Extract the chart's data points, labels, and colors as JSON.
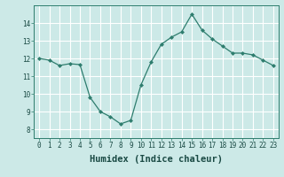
{
  "x": [
    0,
    1,
    2,
    3,
    4,
    5,
    6,
    7,
    8,
    9,
    10,
    11,
    12,
    13,
    14,
    15,
    16,
    17,
    18,
    19,
    20,
    21,
    22,
    23
  ],
  "y": [
    12.0,
    11.9,
    11.6,
    11.7,
    11.65,
    9.8,
    9.0,
    8.7,
    8.3,
    8.5,
    10.5,
    11.8,
    12.8,
    13.2,
    13.5,
    14.5,
    13.6,
    13.1,
    12.7,
    12.3,
    12.3,
    12.2,
    11.9,
    11.6
  ],
  "xlabel": "Humidex (Indice chaleur)",
  "xlim": [
    -0.5,
    23.5
  ],
  "ylim": [
    7.5,
    15.0
  ],
  "yticks": [
    8,
    9,
    10,
    11,
    12,
    13,
    14
  ],
  "xticks": [
    0,
    1,
    2,
    3,
    4,
    5,
    6,
    7,
    8,
    9,
    10,
    11,
    12,
    13,
    14,
    15,
    16,
    17,
    18,
    19,
    20,
    21,
    22,
    23
  ],
  "line_color": "#2e7d6e",
  "marker": "D",
  "marker_size": 2.0,
  "bg_color": "#cce9e7",
  "grid_color": "#ffffff",
  "tick_label_fontsize": 5.5,
  "xlabel_fontsize": 7.5,
  "linewidth": 0.9
}
